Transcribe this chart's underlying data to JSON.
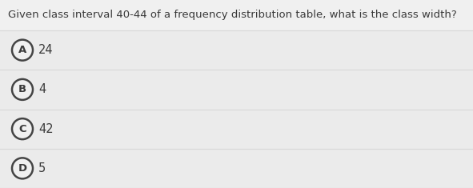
{
  "question": "Given class interval 40-44 of a frequency distribution table, what is the class width?",
  "options": [
    {
      "label": "A",
      "text": "24"
    },
    {
      "label": "B",
      "text": "4"
    },
    {
      "label": "C",
      "text": "42"
    },
    {
      "label": "D",
      "text": "5"
    }
  ],
  "bg_color": "#f0f0f0",
  "option_bg_color": "#ebebeb",
  "text_color": "#3a3a3a",
  "circle_edge_color": "#444444",
  "circle_fill_color": "#f0f0f0",
  "divider_color": "#d8d8d8",
  "question_fontsize": 9.5,
  "option_fontsize": 10.5,
  "label_fontsize": 9.5,
  "fig_width": 5.91,
  "fig_height": 2.35,
  "dpi": 100
}
